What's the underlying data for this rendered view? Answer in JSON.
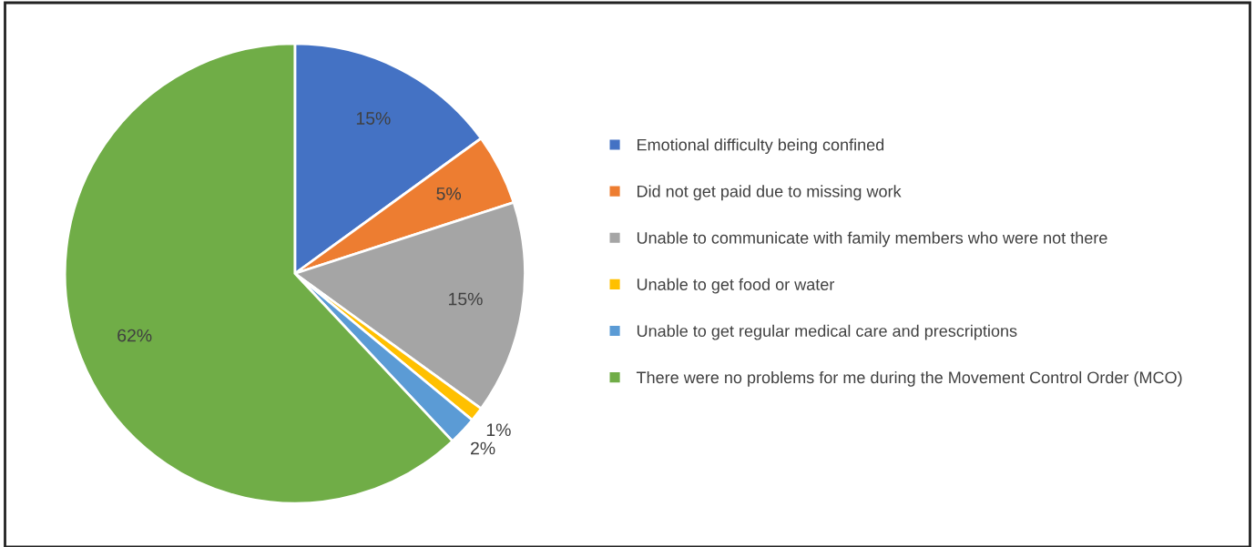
{
  "chart_data": {
    "type": "pie",
    "categories": [
      "Emotional difficulty being confined",
      "Did not get paid due to missing work",
      "Unable to communicate with family members who were not there",
      "Unable to get food or water",
      "Unable to get regular medical care and prescriptions",
      "There were no problems for me during the Movement Control Order (MCO)"
    ],
    "values": [
      15,
      5,
      15,
      1,
      2,
      62
    ],
    "colors": [
      "#4472c4",
      "#ed7d31",
      "#a5a5a5",
      "#ffc000",
      "#5b9bd5",
      "#70ad47"
    ],
    "value_labels": [
      "15%",
      "5%",
      "15%",
      "1%",
      "2%",
      "62%"
    ],
    "legend": "right"
  }
}
